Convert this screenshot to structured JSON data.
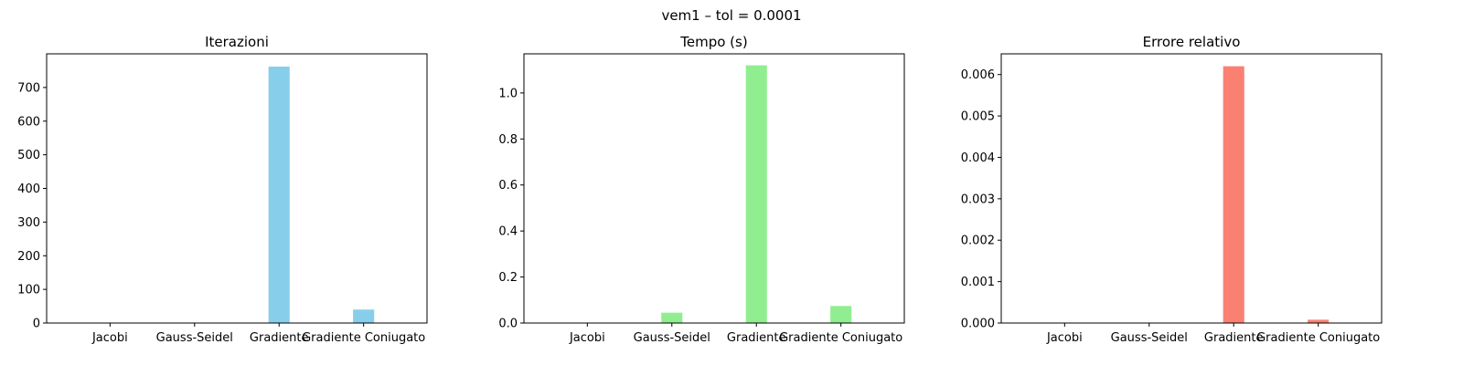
{
  "suptitle": "vem1 – tol = 0.0001",
  "chart_data": [
    {
      "type": "bar",
      "title": "Iterazioni",
      "categories": [
        "Jacobi",
        "Gauss-Seidel",
        "Gradiente",
        "Gradiente Coniugato"
      ],
      "values": [
        0,
        0,
        762,
        40
      ],
      "ylim": [
        0,
        800
      ],
      "yticks": [
        0,
        100,
        200,
        300,
        400,
        500,
        600,
        700
      ],
      "ytick_labels": [
        "0",
        "100",
        "200",
        "300",
        "400",
        "500",
        "600",
        "700"
      ],
      "color": "#87ceeb",
      "grid": false
    },
    {
      "type": "bar",
      "title": "Tempo (s)",
      "categories": [
        "Jacobi",
        "Gauss-Seidel",
        "Gradiente",
        "Gradiente Coniugato"
      ],
      "values": [
        0,
        0.045,
        1.12,
        0.074
      ],
      "ylim": [
        0,
        1.17
      ],
      "yticks": [
        0,
        0.2,
        0.4,
        0.6,
        0.8,
        1.0
      ],
      "ytick_labels": [
        "0.0",
        "0.2",
        "0.4",
        "0.6",
        "0.8",
        "1.0"
      ],
      "color": "#90ee90",
      "grid": false
    },
    {
      "type": "bar",
      "title": "Errore relativo",
      "categories": [
        "Jacobi",
        "Gauss-Seidel",
        "Gradiente",
        "Gradiente Coniugato"
      ],
      "values": [
        0,
        0,
        0.0062,
        8e-05
      ],
      "ylim": [
        0,
        0.0065
      ],
      "yticks": [
        0,
        0.001,
        0.002,
        0.003,
        0.004,
        0.005,
        0.006
      ],
      "ytick_labels": [
        "0.000",
        "0.001",
        "0.002",
        "0.003",
        "0.004",
        "0.005",
        "0.006"
      ],
      "color": "#fa8072",
      "grid": false
    }
  ]
}
